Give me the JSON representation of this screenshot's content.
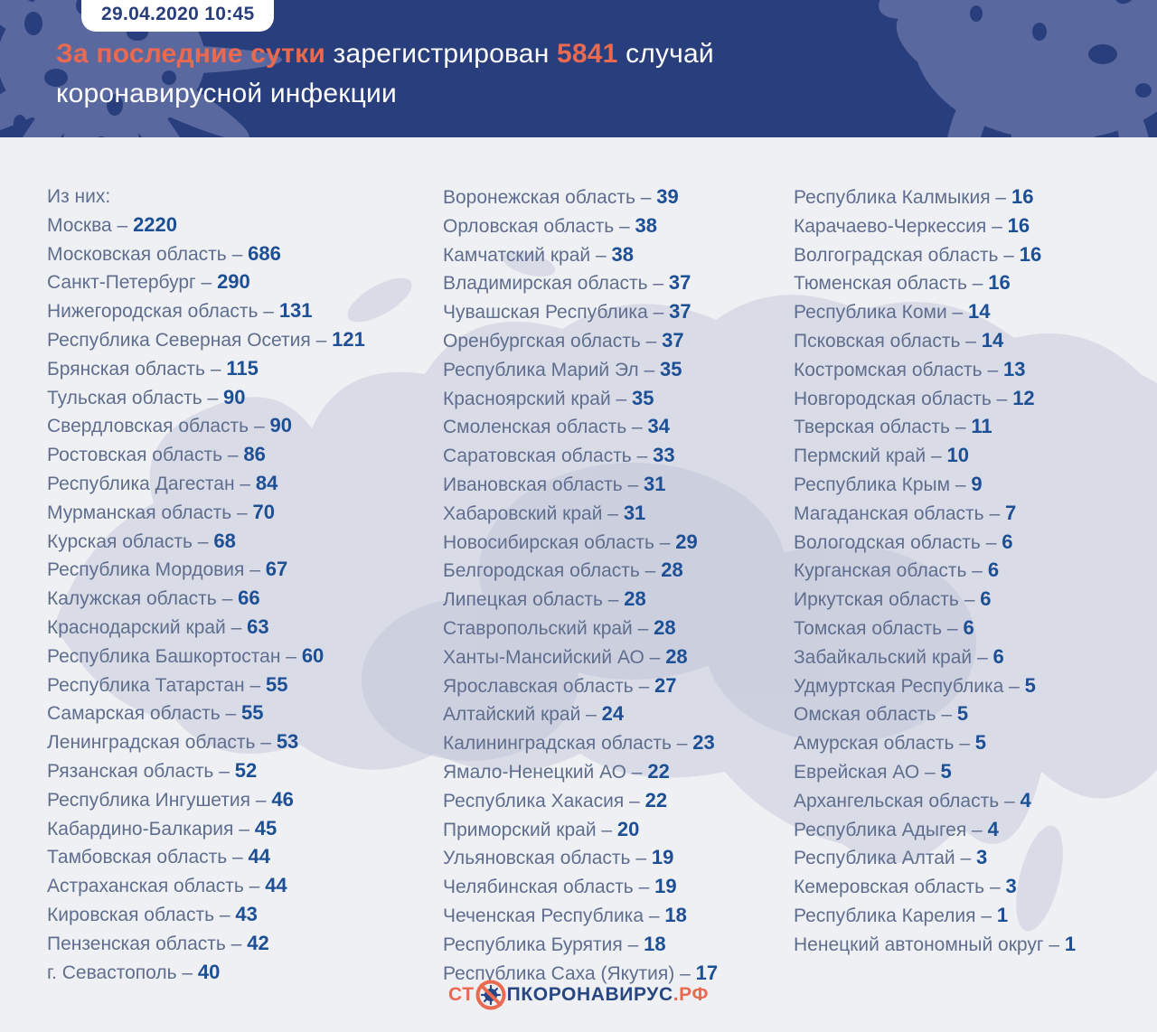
{
  "header": {
    "datetime": "29.04.2020 10:45",
    "title": {
      "accent1": "За последние сутки",
      "text1": " зарегистрирован ",
      "accent2": "5841",
      "text2": " случай",
      "line2": "коронавирусной инфекции"
    }
  },
  "regions": {
    "intro": "Из них:",
    "columns": [
      [
        {
          "name": "Из них:",
          "value": null
        },
        {
          "name": "Москва",
          "value": "2220"
        },
        {
          "name": "Московская область",
          "value": "686"
        },
        {
          "name": "Санкт-Петербург",
          "value": "290"
        },
        {
          "name": "Нижегородская область",
          "value": "131"
        },
        {
          "name": "Республика Северная Осетия",
          "value": "121"
        },
        {
          "name": "Брянская область",
          "value": "115"
        },
        {
          "name": "Тульская область",
          "value": "90"
        },
        {
          "name": "Свердловская область",
          "value": "90"
        },
        {
          "name": "Ростовская область",
          "value": "86"
        },
        {
          "name": "Республика Дагестан",
          "value": "84"
        },
        {
          "name": "Мурманская область",
          "value": "70"
        },
        {
          "name": "Курская область",
          "value": "68"
        },
        {
          "name": "Республика Мордовия",
          "value": "67"
        },
        {
          "name": "Калужская область",
          "value": "66"
        },
        {
          "name": "Краснодарский край",
          "value": "63"
        },
        {
          "name": "Республика Башкортостан",
          "value": "60"
        },
        {
          "name": "Республика Татарстан",
          "value": "55"
        },
        {
          "name": "Самарская область",
          "value": "55"
        },
        {
          "name": "Ленинградская область",
          "value": "53"
        },
        {
          "name": "Рязанская область",
          "value": "52"
        },
        {
          "name": "Республика Ингушетия",
          "value": "46"
        },
        {
          "name": "Кабардино-Балкария",
          "value": "45"
        },
        {
          "name": "Тамбовская область",
          "value": "44"
        },
        {
          "name": "Астраханская область",
          "value": "44"
        },
        {
          "name": "Кировская область",
          "value": "43"
        },
        {
          "name": "Пензенская область",
          "value": "42"
        },
        {
          "name": "г. Севастополь",
          "value": "40"
        }
      ],
      [
        {
          "name": "Воронежская область",
          "value": "39"
        },
        {
          "name": "Орловская область",
          "value": "38"
        },
        {
          "name": "Камчатский край",
          "value": "38"
        },
        {
          "name": "Владимирская область",
          "value": "37"
        },
        {
          "name": "Чувашская Республика",
          "value": "37"
        },
        {
          "name": "Оренбургская область",
          "value": "37"
        },
        {
          "name": "Республика Марий Эл",
          "value": "35"
        },
        {
          "name": "Красноярский край",
          "value": "35"
        },
        {
          "name": "Смоленская область",
          "value": "34"
        },
        {
          "name": "Саратовская область",
          "value": "33"
        },
        {
          "name": "Ивановская область",
          "value": "31"
        },
        {
          "name": "Хабаровский край",
          "value": "31"
        },
        {
          "name": "Новосибирская область",
          "value": "29"
        },
        {
          "name": "Белгородская область",
          "value": "28"
        },
        {
          "name": "Липецкая область",
          "value": "28"
        },
        {
          "name": "Ставропольский край",
          "value": "28"
        },
        {
          "name": "Ханты-Мансийский АО",
          "value": "28"
        },
        {
          "name": "Ярославская область",
          "value": "27"
        },
        {
          "name": "Алтайский край",
          "value": "24"
        },
        {
          "name": "Калининградская область",
          "value": "23"
        },
        {
          "name": "Ямало-Ненецкий АО",
          "value": "22"
        },
        {
          "name": "Республика Хакасия",
          "value": "22"
        },
        {
          "name": "Приморский край",
          "value": "20"
        },
        {
          "name": "Ульяновская область",
          "value": "19"
        },
        {
          "name": "Челябинская область",
          "value": "19"
        },
        {
          "name": "Чеченская Республика",
          "value": "18"
        },
        {
          "name": "Республика Бурятия",
          "value": "18"
        },
        {
          "name": "Республика Саха (Якутия)",
          "value": "17"
        }
      ],
      [
        {
          "name": "Республика Калмыкия",
          "value": "16"
        },
        {
          "name": "Карачаево-Черкессия",
          "value": "16"
        },
        {
          "name": "Волгоградская область",
          "value": "16"
        },
        {
          "name": "Тюменская область",
          "value": "16"
        },
        {
          "name": "Республика Коми",
          "value": "14"
        },
        {
          "name": "Псковская область",
          "value": "14"
        },
        {
          "name": "Костромская область",
          "value": "13"
        },
        {
          "name": "Новгородская область",
          "value": "12"
        },
        {
          "name": "Тверская область",
          "value": "11"
        },
        {
          "name": "Пермский край",
          "value": "10"
        },
        {
          "name": "Республика Крым",
          "value": "9"
        },
        {
          "name": "Магаданская область",
          "value": "7"
        },
        {
          "name": "Вологодская область",
          "value": "6"
        },
        {
          "name": "Курганская область",
          "value": "6"
        },
        {
          "name": "Иркутская область",
          "value": "6"
        },
        {
          "name": "Томская область",
          "value": "6"
        },
        {
          "name": "Забайкальский край",
          "value": "6"
        },
        {
          "name": "Удмуртская Республика",
          "value": "5"
        },
        {
          "name": "Омская область",
          "value": "5"
        },
        {
          "name": "Амурская область",
          "value": "5"
        },
        {
          "name": "Еврейская АО",
          "value": "5"
        },
        {
          "name": "Архангельская область",
          "value": "4"
        },
        {
          "name": "Республика Адыгея",
          "value": "4"
        },
        {
          "name": "Республика Алтай",
          "value": "3"
        },
        {
          "name": "Кемеровская область",
          "value": "3"
        },
        {
          "name": "Республика Карелия",
          "value": "1"
        },
        {
          "name": "Ненецкий автономный округ",
          "value": "1"
        }
      ]
    ]
  },
  "footer": {
    "logo_prefix": "СТ",
    "logo_middle": "ПКОРОНАВИРУС",
    "logo_suffix": ".РФ"
  },
  "colors": {
    "header_bg": "#293e7c",
    "splash": "#5a68a0",
    "accent": "#e96a50",
    "page_bg": "#eff0f3",
    "map": "#ccd1df",
    "map_dark": "#c2c7d8",
    "region_name": "#5f6e8e",
    "region_value": "#1d4f94",
    "badge_bg": "#ffffff"
  }
}
